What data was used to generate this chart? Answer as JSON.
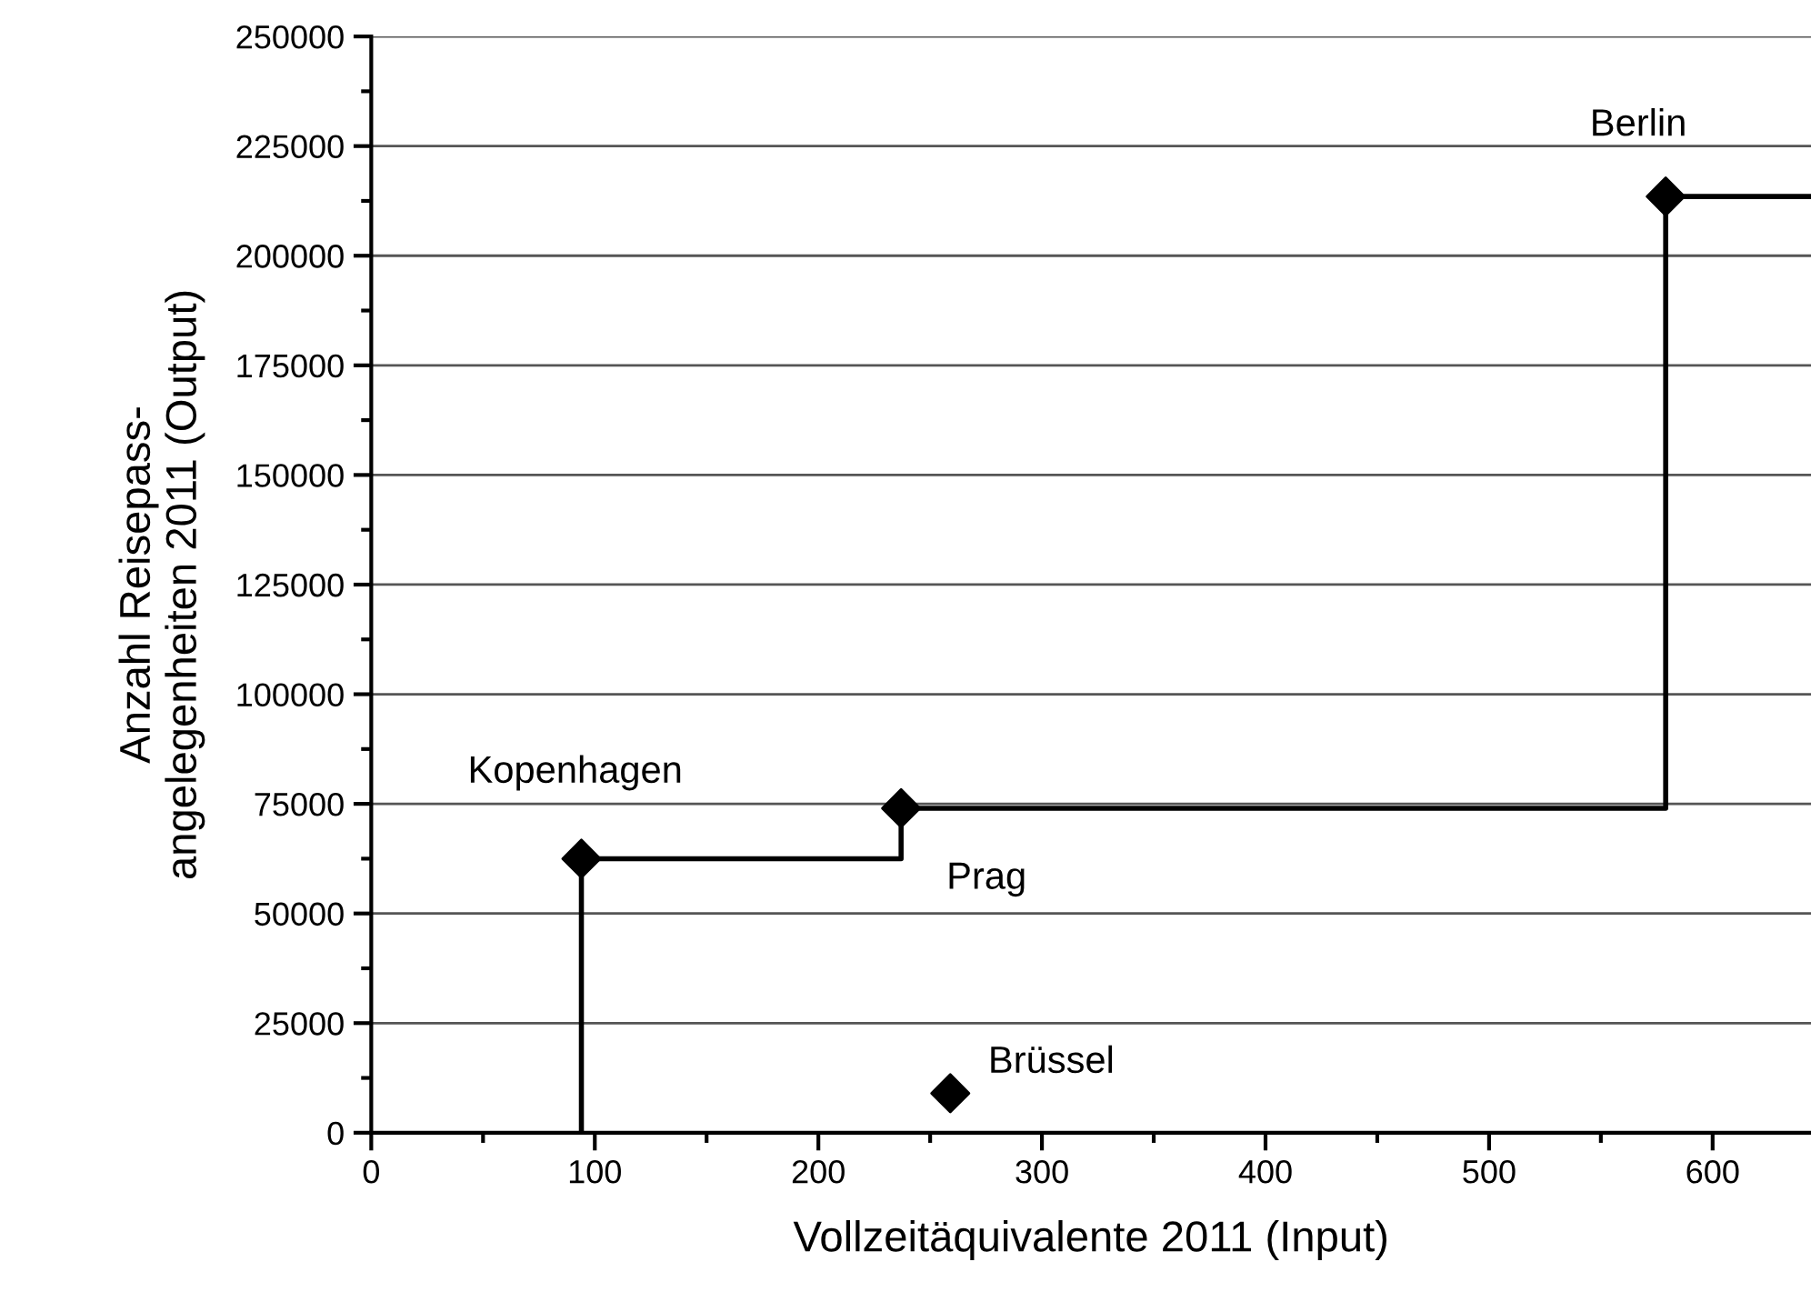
{
  "chart_data": {
    "type": "scatter",
    "xlabel": "Vollzeitäquivalente 2011 (Input)",
    "ylabel": "Anzahl Reisepass-\nangelegenheiten 2011 (Output)",
    "xlim": [
      0,
      644
    ],
    "xticks": [
      0,
      100,
      200,
      300,
      400,
      500,
      600
    ],
    "ylim": [
      0,
      250000
    ],
    "yticks": [
      0,
      25000,
      50000,
      75000,
      100000,
      125000,
      150000,
      175000,
      200000,
      225000,
      250000
    ],
    "grid": "y",
    "marker": "diamond",
    "series": [
      {
        "type": "line",
        "color": "#000000",
        "x": [
          94,
          94,
          237,
          237,
          579,
          579,
          644
        ],
        "values": [
          0,
          62500,
          62500,
          74000,
          74000,
          213500,
          213500
        ],
        "marker": "none"
      },
      {
        "color": "#000000",
        "x": [
          94,
          237,
          259,
          579
        ],
        "values": [
          62500,
          74000,
          9000,
          213500
        ]
      }
    ],
    "annotations": [
      {
        "text": "Kopenhagen",
        "x": 94,
        "y": 62500
      },
      {
        "text": "Prag",
        "x": 237,
        "y": 74000
      },
      {
        "text": "Brüssel",
        "x": 259,
        "y": 9000
      },
      {
        "text": "Berlin",
        "x": 579,
        "y": 213500
      }
    ]
  }
}
